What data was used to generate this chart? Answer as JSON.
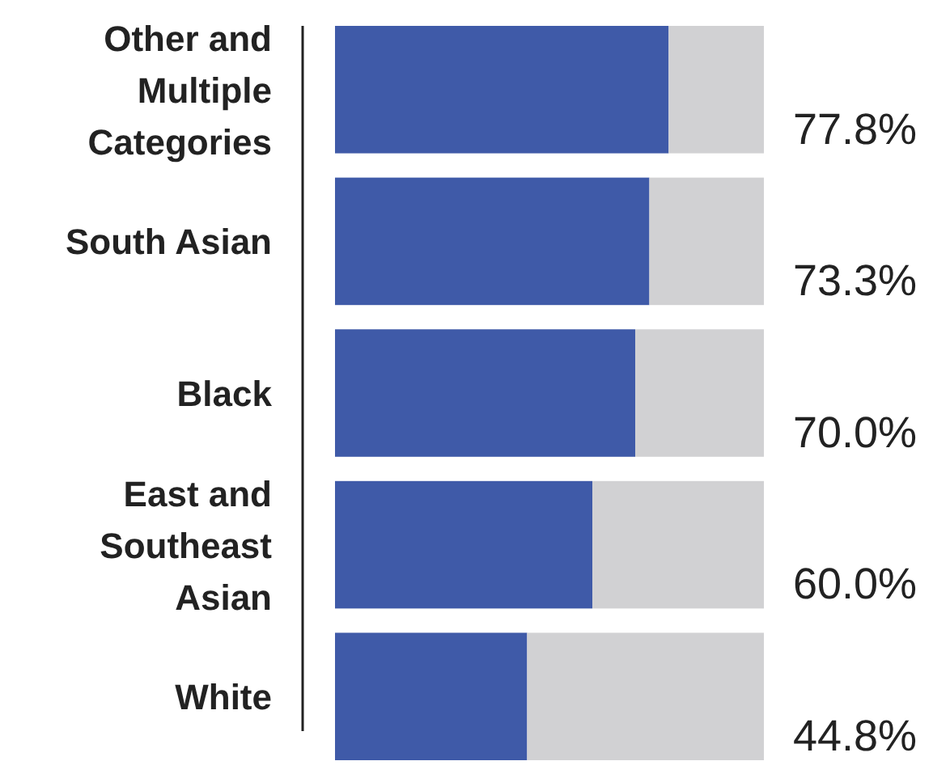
{
  "chart_data": {
    "type": "bar",
    "orientation": "horizontal",
    "stacked": true,
    "xlim": [
      0,
      100
    ],
    "categories": [
      "Other and Multiple Categories",
      "South Asian",
      "Black",
      "East and Southeast Asian",
      "White"
    ],
    "series": [
      {
        "color": "#3f5aa8",
        "values": [
          77.8,
          73.3,
          70.0,
          60.0,
          44.8
        ],
        "value_labels": [
          "77.8%",
          "73.3%",
          "70.0%",
          "60.0%",
          "44.8%"
        ]
      },
      {
        "color": "#d1d1d3",
        "values": [
          22.2,
          26.7,
          30.0,
          40.0,
          55.2
        ]
      }
    ]
  }
}
